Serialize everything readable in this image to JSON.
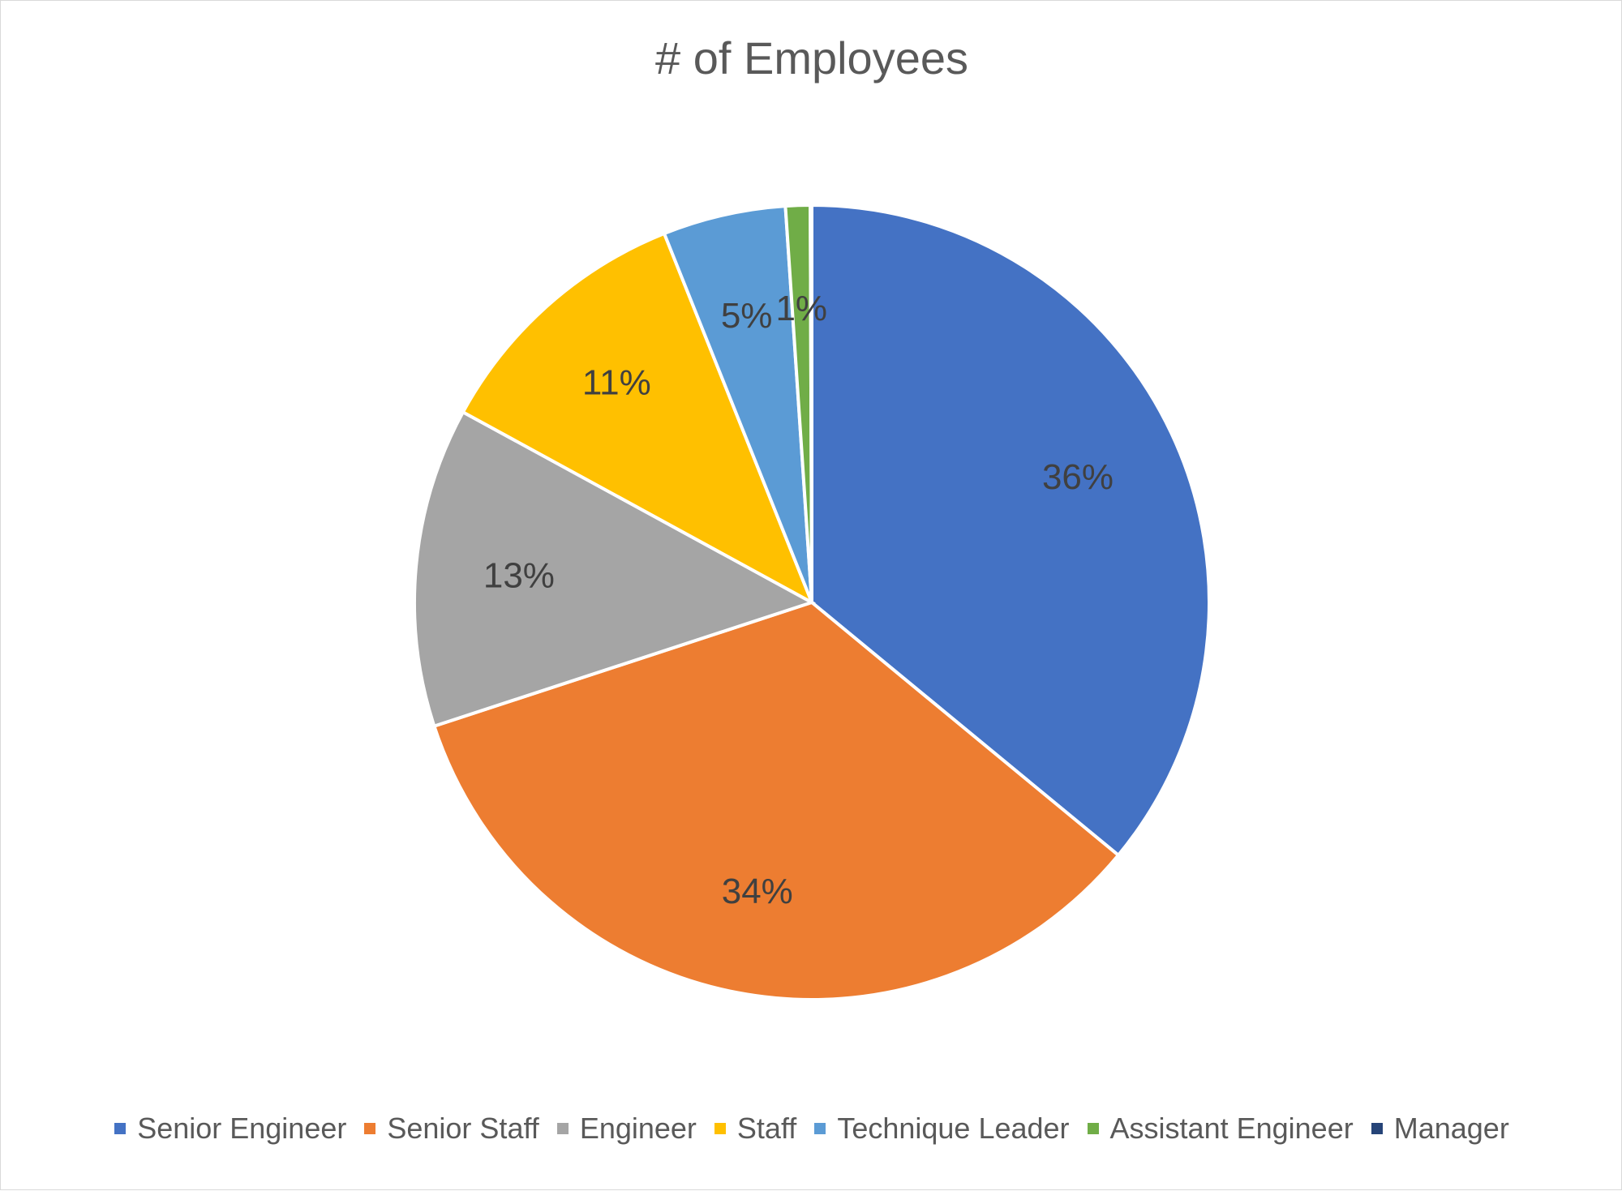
{
  "chart_data": {
    "type": "pie",
    "title": "# of Employees",
    "categories": [
      "Senior Engineer",
      "Senior Staff",
      "Engineer",
      "Staff",
      "Technique Leader",
      "Assistant Engineer",
      "Manager"
    ],
    "values": [
      36,
      34,
      13,
      11,
      5,
      1,
      0.06
    ],
    "labels": [
      "36%",
      "34%",
      "13%",
      "11%",
      "5%",
      "1%",
      ""
    ],
    "colors": [
      "#4472C4",
      "#ED7D31",
      "#A5A5A5",
      "#FFC000",
      "#5B9BD5",
      "#70AD47",
      "#264478"
    ],
    "legend_position": "bottom"
  }
}
